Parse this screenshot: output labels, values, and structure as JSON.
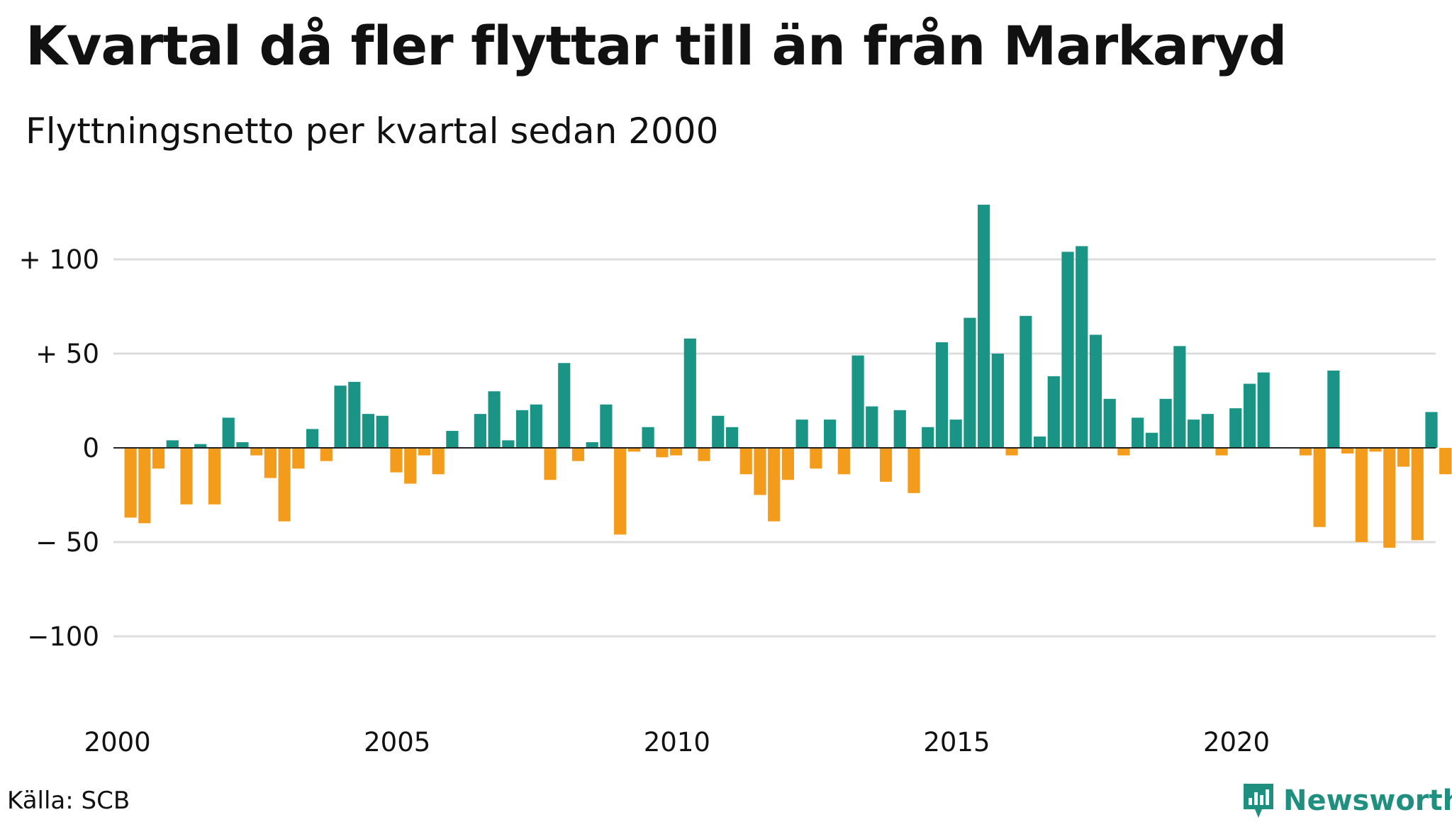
{
  "title": "Kvartal då fler flyttar till än från Markaryd",
  "subtitle": "Flyttningsnetto per kvartal sedan 2000",
  "source": "Källa: SCB",
  "brand": "Newsworthy",
  "colors": {
    "positive": "#1a9585",
    "negative": "#f39c1c",
    "grid": "#dddddd",
    "brand": "#1f8f80"
  },
  "chart_data": {
    "type": "bar",
    "x_start": "2000 Q1",
    "x_tick_labels": [
      "2000",
      "2005",
      "2010",
      "2015",
      "2020"
    ],
    "y_ticks": [
      100,
      50,
      0,
      -50,
      -100
    ],
    "y_tick_labels": [
      "+ 100",
      "+  50",
      "0",
      "− 50",
      "−100"
    ],
    "ylim": [
      -150,
      130
    ],
    "grid": true,
    "values": [
      -37,
      -40,
      -11,
      4,
      -30,
      2,
      -30,
      16,
      3,
      -4,
      -16,
      -39,
      -11,
      10,
      -7,
      33,
      35,
      18,
      17,
      -13,
      -19,
      -4,
      -14,
      9,
      0,
      18,
      30,
      4,
      20,
      23,
      -17,
      45,
      -7,
      3,
      23,
      -46,
      -2,
      11,
      -5,
      -4,
      58,
      -7,
      17,
      11,
      -14,
      -25,
      -39,
      -17,
      15,
      -11,
      15,
      -14,
      49,
      22,
      -18,
      20,
      -24,
      11,
      56,
      15,
      69,
      129,
      50,
      -4,
      70,
      6,
      38,
      104,
      107,
      60,
      26,
      -4,
      16,
      8,
      26,
      54,
      15,
      18,
      -4,
      21,
      34,
      40,
      0,
      0,
      -4,
      -42,
      41,
      -3,
      -50,
      -2,
      -53,
      -10,
      -49,
      19,
      -14
    ]
  }
}
